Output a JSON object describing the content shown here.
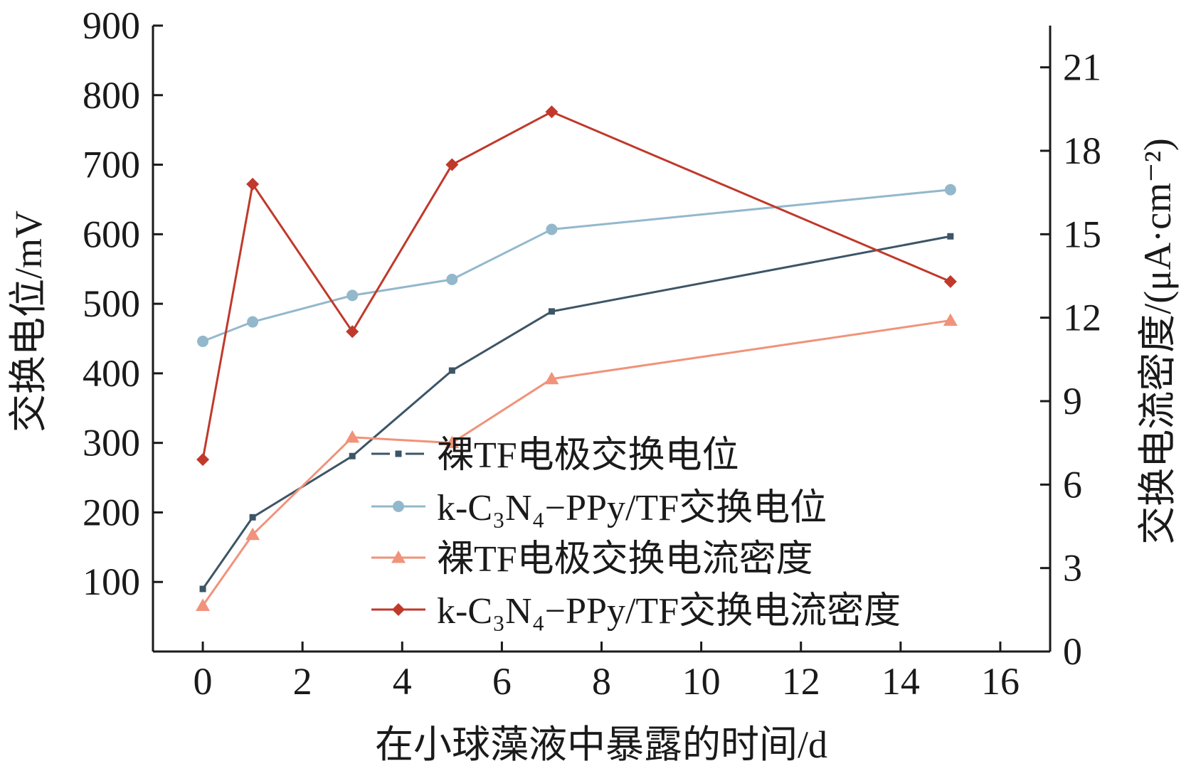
{
  "chart_data": {
    "type": "line",
    "xlabel": "在小球藻液中暴露的时间/d",
    "ylabel_left": "交换电位/mV",
    "ylabel_right": "交换电流密度/(μA·cm⁻²)",
    "xlim": [
      -1,
      17
    ],
    "ylim_left": [
      0,
      900
    ],
    "ylim_right": [
      0,
      22.5
    ],
    "xticks": [
      "0",
      "2",
      "4",
      "6",
      "8",
      "10",
      "12",
      "14",
      "16"
    ],
    "yticks_left": [
      "100",
      "200",
      "300",
      "400",
      "500",
      "600",
      "700",
      "800",
      "900"
    ],
    "yticks_right": [
      "0",
      "3",
      "6",
      "9",
      "12",
      "15",
      "18",
      "21"
    ],
    "grid": false,
    "legend_position": "bottom-right",
    "series": [
      {
        "name": "裸TF电极交换电位",
        "axis": "left",
        "color": "#3d5566",
        "marker": "square",
        "x": [
          0,
          1,
          3,
          5,
          7,
          15
        ],
        "y": [
          90,
          193,
          281,
          404,
          489,
          597
        ]
      },
      {
        "name": "k-C₃N₄−PPy/TF交换电位",
        "axis": "left",
        "color": "#93b8cc",
        "marker": "circle",
        "x": [
          0,
          1,
          3,
          5,
          7,
          15
        ],
        "y": [
          446,
          474,
          512,
          535,
          607,
          664
        ]
      },
      {
        "name": "裸TF电极交换电流密度",
        "axis": "right",
        "color": "#f0937a",
        "marker": "triangle",
        "x": [
          0,
          1,
          3,
          5,
          7,
          15
        ],
        "y": [
          1.65,
          4.2,
          7.7,
          7.5,
          9.8,
          11.9
        ]
      },
      {
        "name": "k-C₃N₄−PPy/TF交换电流密度",
        "axis": "right",
        "color": "#c0392b",
        "marker": "diamond",
        "x": [
          0,
          1,
          3,
          5,
          7,
          15
        ],
        "y": [
          6.9,
          16.8,
          11.5,
          17.5,
          19.4,
          13.3
        ]
      }
    ]
  }
}
